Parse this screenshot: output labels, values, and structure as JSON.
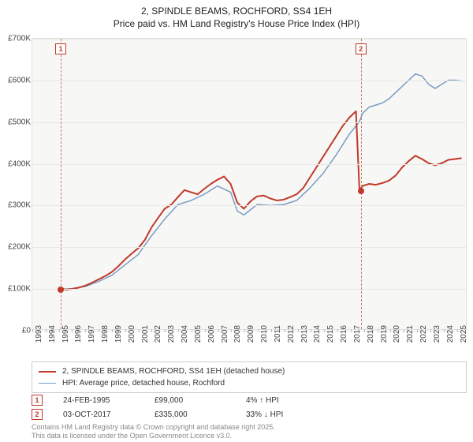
{
  "title": {
    "line1": "2, SPINDLE BEAMS, ROCHFORD, SS4 1EH",
    "line2": "Price paid vs. HM Land Registry's House Price Index (HPI)"
  },
  "chart": {
    "type": "line",
    "background_color": "#f7f7f5",
    "grid_color": "#e8e8e4",
    "border_color": "#e0e0dd",
    "ylim": [
      0,
      700000
    ],
    "ytick_step": 100000,
    "yticks": [
      "£0",
      "£100K",
      "£200K",
      "£300K",
      "£400K",
      "£500K",
      "£600K",
      "£700K"
    ],
    "xlim": [
      1993,
      2025.8
    ],
    "xticks": [
      1993,
      1994,
      1995,
      1996,
      1997,
      1998,
      1999,
      2000,
      2001,
      2002,
      2003,
      2004,
      2005,
      2006,
      2007,
      2008,
      2009,
      2010,
      2011,
      2012,
      2013,
      2014,
      2015,
      2016,
      2017,
      2018,
      2019,
      2020,
      2021,
      2022,
      2023,
      2024,
      2025
    ],
    "series": [
      {
        "name": "price_paid",
        "label": "2, SPINDLE BEAMS, ROCHFORD, SS4 1EH (detached house)",
        "color": "#c0392b",
        "line_width": 2,
        "points": [
          [
            1995.15,
            99000
          ],
          [
            1995.5,
            95000
          ],
          [
            1996,
            97000
          ],
          [
            1996.5,
            100000
          ],
          [
            1997,
            105000
          ],
          [
            1997.5,
            112000
          ],
          [
            1998,
            120000
          ],
          [
            1998.5,
            128000
          ],
          [
            1999,
            138000
          ],
          [
            1999.5,
            152000
          ],
          [
            2000,
            168000
          ],
          [
            2000.5,
            182000
          ],
          [
            2001,
            195000
          ],
          [
            2001.5,
            215000
          ],
          [
            2002,
            245000
          ],
          [
            2002.5,
            268000
          ],
          [
            2003,
            290000
          ],
          [
            2003.5,
            300000
          ],
          [
            2004,
            318000
          ],
          [
            2004.5,
            335000
          ],
          [
            2005,
            330000
          ],
          [
            2005.5,
            325000
          ],
          [
            2006,
            338000
          ],
          [
            2006.5,
            350000
          ],
          [
            2007,
            360000
          ],
          [
            2007.5,
            368000
          ],
          [
            2008,
            350000
          ],
          [
            2008.5,
            305000
          ],
          [
            2009,
            290000
          ],
          [
            2009.5,
            308000
          ],
          [
            2010,
            320000
          ],
          [
            2010.5,
            322000
          ],
          [
            2011,
            315000
          ],
          [
            2011.5,
            310000
          ],
          [
            2012,
            312000
          ],
          [
            2012.5,
            318000
          ],
          [
            2013,
            325000
          ],
          [
            2013.5,
            340000
          ],
          [
            2014,
            365000
          ],
          [
            2014.5,
            390000
          ],
          [
            2015,
            415000
          ],
          [
            2015.5,
            440000
          ],
          [
            2016,
            465000
          ],
          [
            2016.5,
            490000
          ],
          [
            2017,
            510000
          ],
          [
            2017.5,
            525000
          ],
          [
            2017.76,
            335000
          ],
          [
            2018,
            345000
          ],
          [
            2018.5,
            350000
          ],
          [
            2019,
            348000
          ],
          [
            2019.5,
            352000
          ],
          [
            2020,
            358000
          ],
          [
            2020.5,
            370000
          ],
          [
            2021,
            390000
          ],
          [
            2021.5,
            405000
          ],
          [
            2022,
            418000
          ],
          [
            2022.5,
            410000
          ],
          [
            2023,
            400000
          ],
          [
            2023.5,
            395000
          ],
          [
            2024,
            400000
          ],
          [
            2024.5,
            408000
          ],
          [
            2025,
            410000
          ],
          [
            2025.5,
            412000
          ]
        ]
      },
      {
        "name": "hpi",
        "label": "HPI: Average price, detached house, Rochford",
        "color": "#7a9cc6",
        "line_width": 1.5,
        "points": [
          [
            1995.15,
            96000
          ],
          [
            1996,
            98000
          ],
          [
            1997,
            103000
          ],
          [
            1998,
            115000
          ],
          [
            1999,
            130000
          ],
          [
            2000,
            155000
          ],
          [
            2001,
            180000
          ],
          [
            2002,
            225000
          ],
          [
            2003,
            265000
          ],
          [
            2004,
            300000
          ],
          [
            2005,
            310000
          ],
          [
            2006,
            325000
          ],
          [
            2007,
            345000
          ],
          [
            2008,
            330000
          ],
          [
            2008.5,
            285000
          ],
          [
            2009,
            275000
          ],
          [
            2010,
            300000
          ],
          [
            2011,
            298000
          ],
          [
            2012,
            300000
          ],
          [
            2013,
            310000
          ],
          [
            2014,
            340000
          ],
          [
            2015,
            375000
          ],
          [
            2016,
            420000
          ],
          [
            2017,
            470000
          ],
          [
            2017.76,
            500000
          ],
          [
            2018,
            520000
          ],
          [
            2018.5,
            535000
          ],
          [
            2019,
            540000
          ],
          [
            2019.5,
            545000
          ],
          [
            2020,
            555000
          ],
          [
            2020.5,
            570000
          ],
          [
            2021,
            585000
          ],
          [
            2021.5,
            600000
          ],
          [
            2022,
            615000
          ],
          [
            2022.5,
            610000
          ],
          [
            2023,
            590000
          ],
          [
            2023.5,
            580000
          ],
          [
            2024,
            590000
          ],
          [
            2024.5,
            600000
          ],
          [
            2025,
            600000
          ],
          [
            2025.5,
            598000
          ]
        ]
      }
    ],
    "markers": [
      {
        "id": "1",
        "x": 1995.15,
        "y": 99000
      },
      {
        "id": "2",
        "x": 2017.76,
        "y": 335000
      }
    ]
  },
  "legend": {
    "border_color": "#cccccc",
    "items": [
      {
        "color": "#c0392b",
        "width": 2,
        "label": "2, SPINDLE BEAMS, ROCHFORD, SS4 1EH (detached house)"
      },
      {
        "color": "#7a9cc6",
        "width": 1.5,
        "label": "HPI: Average price, detached house, Rochford"
      }
    ]
  },
  "annotations": [
    {
      "id": "1",
      "date": "24-FEB-1995",
      "price": "£99,000",
      "delta": "4% ↑ HPI",
      "arrow_color": "#2e8b3d"
    },
    {
      "id": "2",
      "date": "03-OCT-2017",
      "price": "£335,000",
      "delta": "33% ↓ HPI",
      "arrow_color": "#c0392b"
    }
  ],
  "footer": {
    "line1": "Contains HM Land Registry data © Crown copyright and database right 2025.",
    "line2": "This data is licensed under the Open Government Licence v3.0."
  },
  "style": {
    "title_fontsize": 12,
    "axis_fontsize": 10,
    "legend_fontsize": 10,
    "footer_fontsize": 9,
    "marker_box_border": "#c0392b",
    "text_color": "#333333",
    "muted_text_color": "#888888"
  }
}
